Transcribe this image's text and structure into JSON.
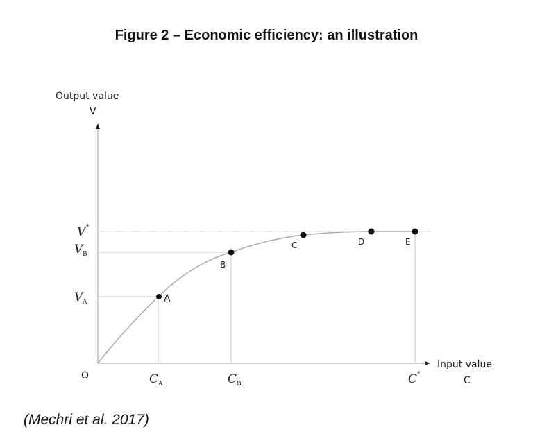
{
  "title": "Figure 2 – Economic efficiency: an illustration",
  "citation": "(Mechri et al. 2017)",
  "axes": {
    "y_label": "Output value",
    "y_symbol": "V",
    "x_label": "Input value",
    "x_symbol": "C",
    "origin": "O"
  },
  "y_ticks": [
    {
      "base": "V",
      "sub": "",
      "sup": "*"
    },
    {
      "base": "V",
      "sub": "B",
      "sup": ""
    },
    {
      "base": "V",
      "sub": "A",
      "sup": ""
    }
  ],
  "x_ticks": [
    {
      "base": "C",
      "sub": "A",
      "sup": ""
    },
    {
      "base": "C",
      "sub": "B",
      "sup": ""
    },
    {
      "base": "C",
      "sub": "",
      "sup": "*"
    }
  ],
  "points": [
    {
      "label": "A"
    },
    {
      "label": "B"
    },
    {
      "label": "C"
    },
    {
      "label": "D"
    },
    {
      "label": "E"
    }
  ]
}
